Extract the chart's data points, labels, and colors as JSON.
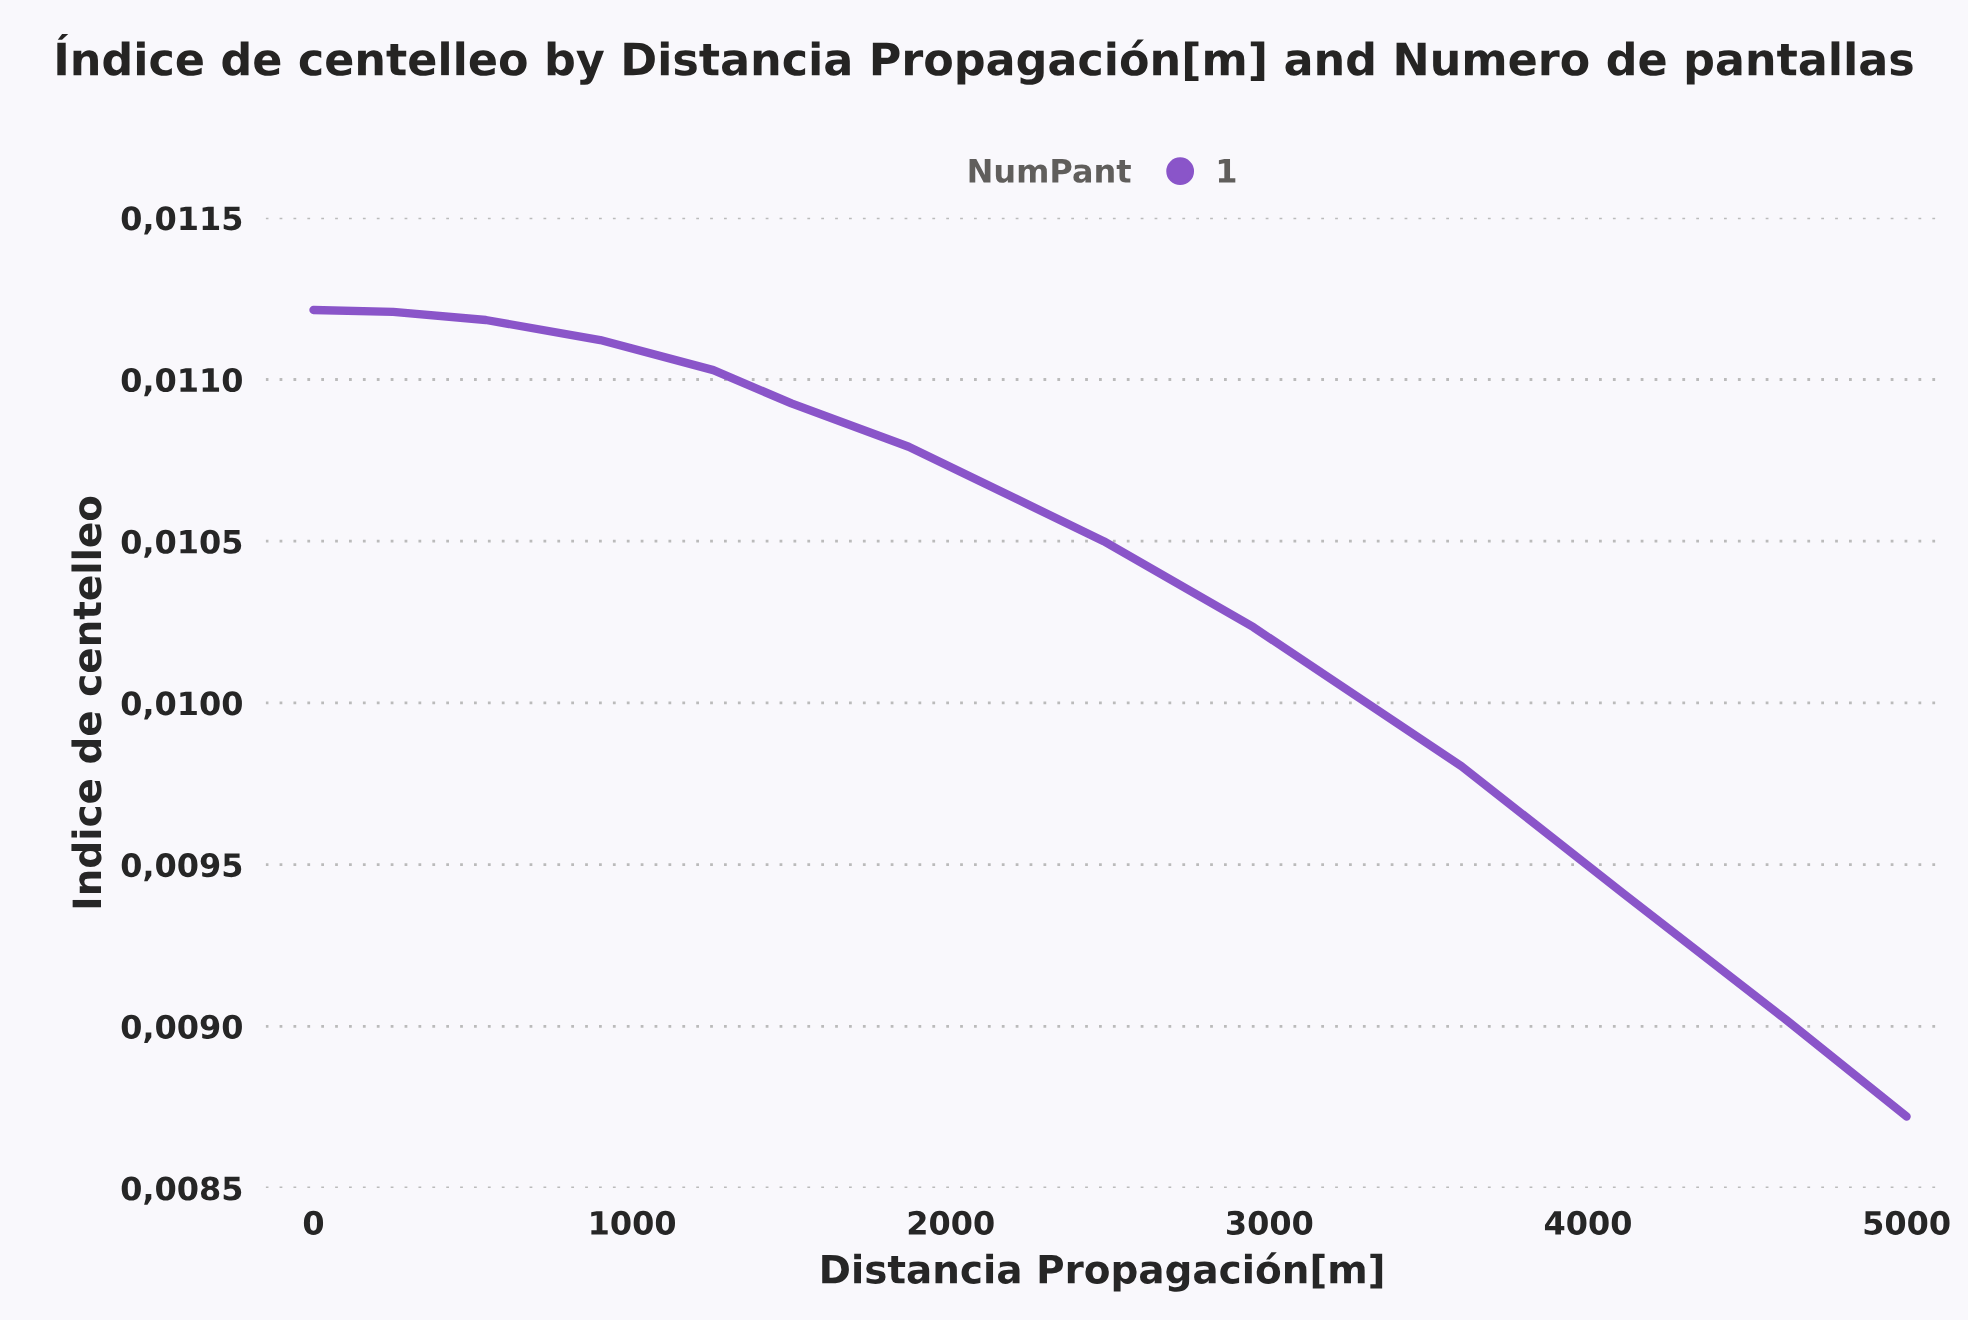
{
  "chart_data": {
    "type": "line",
    "title": "Índice de centelleo by Distancia Propagación[m] and Numero de pantallas",
    "xlabel": "Distancia Propagación[m]",
    "ylabel": "Indice de centelleo",
    "legend_title": "NumPant",
    "x": [
      0,
      250,
      541,
      900,
      1255,
      1500,
      1868,
      2480,
      2950,
      3603,
      4113,
      4623,
      5000
    ],
    "series": [
      {
        "name": "1",
        "color": "#8a55c9",
        "values": [
          0.011215,
          0.011209,
          0.011184,
          0.011122,
          0.011029,
          0.010926,
          0.010792,
          0.0105,
          0.010234,
          0.009804,
          0.009409,
          0.009019,
          0.008721
        ]
      }
    ],
    "xlim": [
      -150,
      5100
    ],
    "xticks": [
      0,
      1000,
      2000,
      3000,
      4000,
      5000
    ],
    "ylim": [
      0.0085,
      0.0115
    ],
    "yticks": [
      {
        "value": 0.0085,
        "label": "0,0085"
      },
      {
        "value": 0.009,
        "label": "0,0090"
      },
      {
        "value": 0.0095,
        "label": "0,0095"
      },
      {
        "value": 0.01,
        "label": "0,0100"
      },
      {
        "value": 0.0105,
        "label": "0,0105"
      },
      {
        "value": 0.011,
        "label": "0,0110"
      },
      {
        "value": 0.0115,
        "label": "0,0115"
      }
    ],
    "grid": "y",
    "legend": "top",
    "marker": "none",
    "line_style": "solid"
  }
}
